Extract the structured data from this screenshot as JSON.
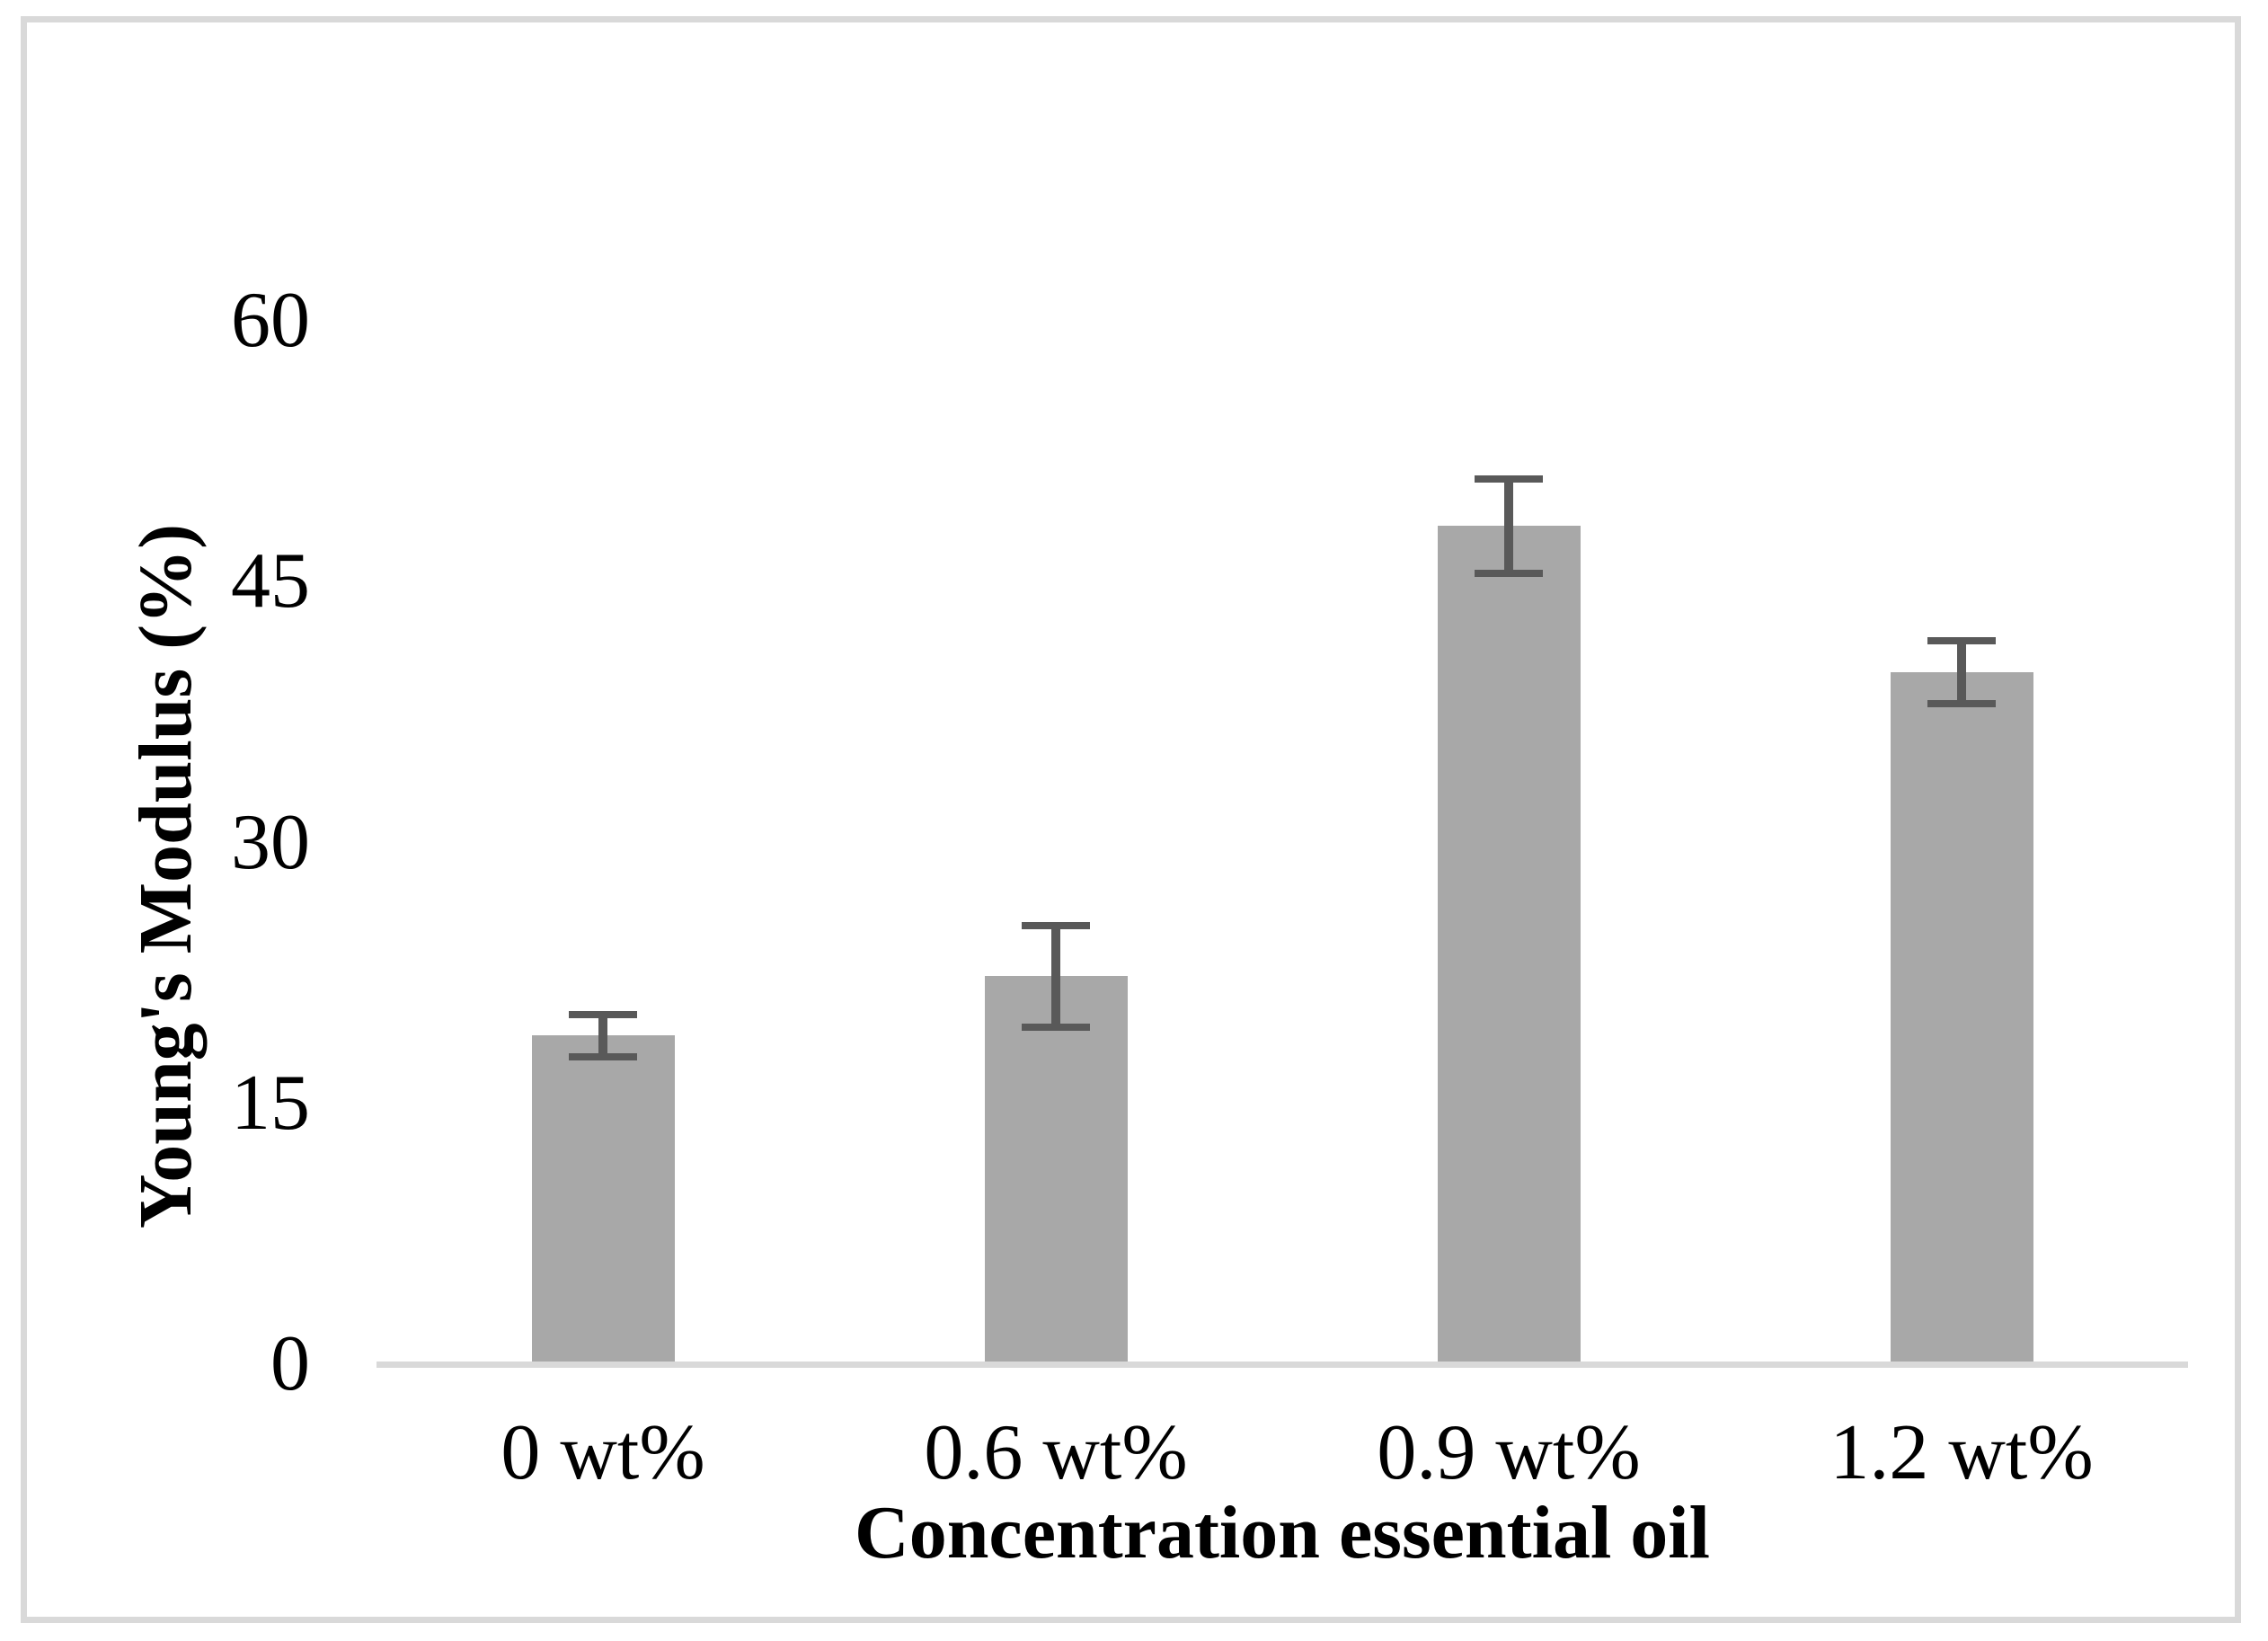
{
  "chart_data": {
    "type": "bar",
    "title": "",
    "categories": [
      "0 wt%",
      "0.6 wt%",
      "0.9 wt%",
      "1.2 wt%"
    ],
    "values": [
      18.9,
      22.3,
      48.2,
      39.8
    ],
    "error_bars": [
      1.2,
      2.9,
      2.7,
      1.8
    ],
    "xlabel": "Concentration essential oil",
    "ylabel": "Young's Modulus (%)",
    "ylim": [
      0,
      60
    ],
    "yticks": [
      0,
      15,
      30,
      45,
      60
    ],
    "grid": false,
    "legend": false,
    "colors": {
      "bar_fill": "#a8a8a8",
      "error_bar": "#595959",
      "axis_line": "#d9d9d9",
      "figure_border": "#d9d9d9",
      "text": "#000000",
      "background": "#ffffff"
    }
  }
}
